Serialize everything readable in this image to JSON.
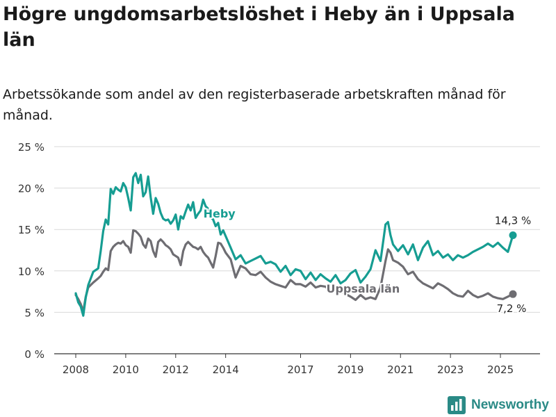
{
  "title": "Högre ungdomsarbetslöshet i Heby än i Uppsala län",
  "subtitle": "Arbetssökande som andel av den registerbaserade arbetskraften månad för månad.",
  "brand": "Newsworthy",
  "colors": {
    "heby": "#169d92",
    "uppsala": "#6e6d72",
    "grid": "#d9d9d9",
    "text": "#333333"
  },
  "chart_data": {
    "type": "line",
    "title": "Högre ungdomsarbetslöshet i Heby än i Uppsala län",
    "subtitle": "Arbetssökande som andel av den registerbaserade arbetskraften månad för månad.",
    "xlabel": "",
    "ylabel": "",
    "xlim": [
      2008,
      2025.75
    ],
    "ylim": [
      0,
      25
    ],
    "y_ticks": [
      0,
      5,
      10,
      15,
      20,
      25
    ],
    "y_tick_labels": [
      "0 %",
      "5 %",
      "10 %",
      "15 %",
      "20 %",
      "25 %"
    ],
    "x_ticks": [
      2008,
      2010,
      2012,
      2014,
      2017,
      2019,
      2021,
      2023,
      2025
    ],
    "x_tick_labels": [
      "2008",
      "2010",
      "2012",
      "2014",
      "2017",
      "2019",
      "2021",
      "2023",
      "2025"
    ],
    "grid": true,
    "legend": "none (series labelled inline)",
    "series": [
      {
        "name": "Heby",
        "color": "#169d92",
        "end_label": "14,3 %",
        "x": [
          2008.0,
          2008.1,
          2008.2,
          2008.3,
          2008.4,
          2008.5,
          2008.7,
          2008.9,
          2009.0,
          2009.1,
          2009.2,
          2009.3,
          2009.4,
          2009.5,
          2009.6,
          2009.7,
          2009.8,
          2009.9,
          2010.0,
          2010.1,
          2010.2,
          2010.3,
          2010.4,
          2010.5,
          2010.6,
          2010.7,
          2010.8,
          2010.9,
          2011.0,
          2011.1,
          2011.2,
          2011.3,
          2011.4,
          2011.5,
          2011.6,
          2011.7,
          2011.8,
          2011.9,
          2012.0,
          2012.1,
          2012.2,
          2012.3,
          2012.4,
          2012.5,
          2012.6,
          2012.7,
          2012.8,
          2012.9,
          2013.0,
          2013.1,
          2013.2,
          2013.3,
          2013.4,
          2013.5,
          2013.6,
          2013.7,
          2013.8,
          2013.9,
          2014.0,
          2014.2,
          2014.4,
          2014.6,
          2014.8,
          2015.0,
          2015.2,
          2015.4,
          2015.6,
          2015.8,
          2016.0,
          2016.2,
          2016.4,
          2016.6,
          2016.8,
          2017.0,
          2017.2,
          2017.4,
          2017.6,
          2017.8,
          2018.0,
          2018.2,
          2018.4,
          2018.6,
          2018.8,
          2019.0,
          2019.2,
          2019.4,
          2019.6,
          2019.8,
          2020.0,
          2020.2,
          2020.4,
          2020.5,
          2020.6,
          2020.7,
          2020.9,
          2021.1,
          2021.3,
          2021.5,
          2021.7,
          2021.9,
          2022.1,
          2022.3,
          2022.5,
          2022.7,
          2022.9,
          2023.1,
          2023.3,
          2023.5,
          2023.7,
          2023.9,
          2024.1,
          2024.3,
          2024.5,
          2024.7,
          2024.9,
          2025.1,
          2025.3,
          2025.5
        ],
        "values": [
          7.3,
          6.2,
          5.7,
          4.6,
          6.8,
          8.3,
          9.9,
          10.3,
          12.4,
          14.8,
          16.2,
          15.6,
          19.9,
          19.3,
          20.1,
          19.8,
          19.6,
          20.6,
          20.1,
          18.8,
          17.3,
          21.3,
          21.8,
          20.6,
          21.6,
          19.0,
          19.5,
          21.4,
          18.9,
          16.9,
          18.8,
          18.1,
          17.0,
          16.3,
          16.1,
          16.2,
          15.7,
          16.1,
          16.8,
          15.0,
          16.6,
          16.3,
          17.2,
          18.0,
          17.3,
          18.3,
          16.4,
          16.9,
          17.3,
          18.6,
          17.8,
          17.5,
          16.5,
          16.2,
          15.4,
          15.8,
          14.4,
          14.9,
          14.2,
          12.8,
          11.4,
          11.9,
          10.9,
          11.2,
          11.5,
          11.8,
          10.9,
          11.1,
          10.8,
          9.9,
          10.6,
          9.5,
          10.2,
          10.0,
          9.0,
          9.8,
          8.9,
          9.6,
          9.1,
          8.7,
          9.5,
          8.5,
          8.9,
          9.7,
          10.1,
          8.6,
          9.3,
          10.2,
          12.5,
          11.2,
          15.6,
          15.9,
          14.3,
          13.2,
          12.4,
          13.1,
          12.0,
          13.2,
          11.3,
          12.8,
          13.6,
          11.9,
          12.4,
          11.6,
          12.0,
          11.3,
          11.9,
          11.6,
          11.9,
          12.3,
          12.6,
          12.9,
          13.3,
          12.9,
          13.4,
          12.8,
          12.3,
          14.3
        ]
      },
      {
        "name": "Uppsala län",
        "color": "#6e6d72",
        "end_label": "7,2 %",
        "x": [
          2008.0,
          2008.1,
          2008.2,
          2008.3,
          2008.4,
          2008.5,
          2008.7,
          2008.9,
          2009.0,
          2009.1,
          2009.2,
          2009.3,
          2009.4,
          2009.5,
          2009.6,
          2009.7,
          2009.8,
          2009.9,
          2010.0,
          2010.1,
          2010.2,
          2010.3,
          2010.4,
          2010.5,
          2010.6,
          2010.7,
          2010.8,
          2010.9,
          2011.0,
          2011.1,
          2011.2,
          2011.3,
          2011.4,
          2011.5,
          2011.6,
          2011.7,
          2011.8,
          2011.9,
          2012.0,
          2012.1,
          2012.2,
          2012.3,
          2012.4,
          2012.5,
          2012.6,
          2012.7,
          2012.8,
          2012.9,
          2013.0,
          2013.1,
          2013.2,
          2013.3,
          2013.4,
          2013.5,
          2013.6,
          2013.7,
          2013.8,
          2013.9,
          2014.0,
          2014.2,
          2014.4,
          2014.6,
          2014.8,
          2015.0,
          2015.2,
          2015.4,
          2015.6,
          2015.8,
          2016.0,
          2016.2,
          2016.4,
          2016.6,
          2016.8,
          2017.0,
          2017.2,
          2017.4,
          2017.6,
          2017.8,
          2018.0,
          2018.2,
          2018.4,
          2018.6,
          2018.8,
          2019.0,
          2019.2,
          2019.4,
          2019.6,
          2019.8,
          2020.0,
          2020.2,
          2020.4,
          2020.5,
          2020.6,
          2020.7,
          2020.9,
          2021.1,
          2021.3,
          2021.5,
          2021.7,
          2021.9,
          2022.1,
          2022.3,
          2022.5,
          2022.7,
          2022.9,
          2023.1,
          2023.3,
          2023.5,
          2023.7,
          2023.9,
          2024.1,
          2024.3,
          2024.5,
          2024.7,
          2024.9,
          2025.1,
          2025.3,
          2025.5
        ],
        "values": [
          7.1,
          6.6,
          6.0,
          5.1,
          6.9,
          8.0,
          8.6,
          9.1,
          9.4,
          9.9,
          10.3,
          10.1,
          12.4,
          12.9,
          13.2,
          13.4,
          13.3,
          13.6,
          13.1,
          12.9,
          12.2,
          14.9,
          14.8,
          14.5,
          14.1,
          13.2,
          12.8,
          13.9,
          13.6,
          12.4,
          11.7,
          13.5,
          13.8,
          13.5,
          13.1,
          12.9,
          12.6,
          12.0,
          11.8,
          11.6,
          10.7,
          12.4,
          13.2,
          13.5,
          13.2,
          12.9,
          12.8,
          12.6,
          12.9,
          12.3,
          11.9,
          11.6,
          11.0,
          10.4,
          11.8,
          13.4,
          13.3,
          12.8,
          12.2,
          11.4,
          9.2,
          10.6,
          10.3,
          9.6,
          9.5,
          9.9,
          9.2,
          8.7,
          8.4,
          8.2,
          8.0,
          8.9,
          8.4,
          8.4,
          8.1,
          8.6,
          8.0,
          8.2,
          8.1,
          7.5,
          7.9,
          7.6,
          7.2,
          6.9,
          6.5,
          7.1,
          6.6,
          6.8,
          6.6,
          8.0,
          11.2,
          12.6,
          12.2,
          11.3,
          11.0,
          10.5,
          9.6,
          9.9,
          9.0,
          8.5,
          8.2,
          7.9,
          8.5,
          8.2,
          7.8,
          7.3,
          7.0,
          6.9,
          7.6,
          7.1,
          6.8,
          7.0,
          7.3,
          6.9,
          6.7,
          6.6,
          6.9,
          7.2
        ]
      }
    ]
  }
}
